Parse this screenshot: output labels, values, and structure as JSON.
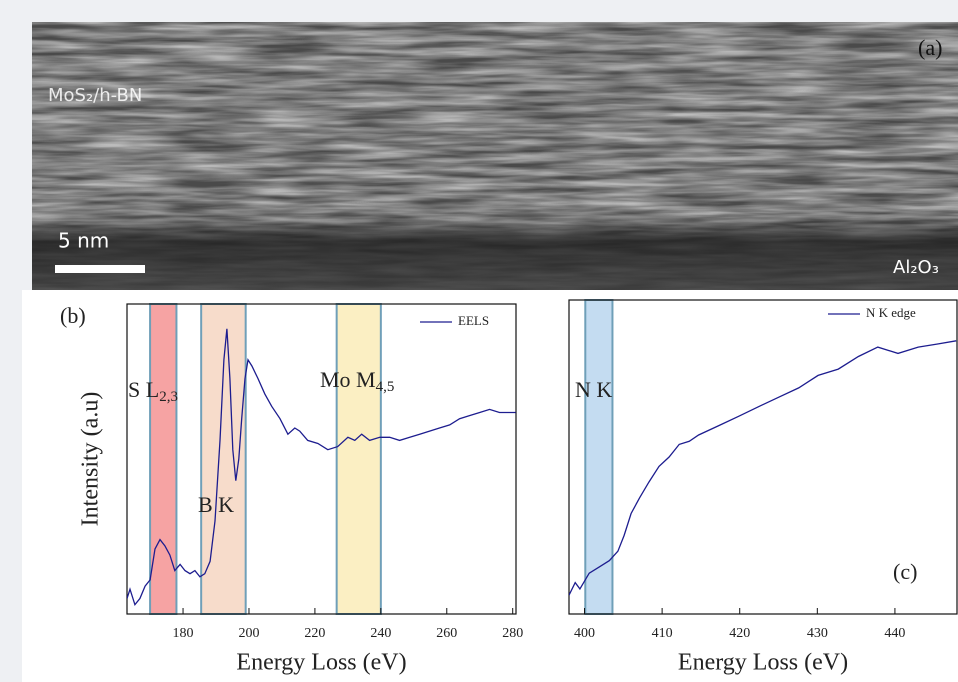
{
  "image": {
    "panel_label": "(a)",
    "material_label": "MoS₂/h-BN",
    "substrate_label": "Al₂O₃",
    "scale_bar": "5 nm"
  },
  "chart_data": [
    {
      "type": "line",
      "panel_label": "(b)",
      "x_label": "Energy Loss (eV)",
      "y_label": "Intensity (a.u)",
      "xlim": [
        163,
        281
      ],
      "xticks": [
        180,
        200,
        220,
        240,
        260,
        280
      ],
      "ylim": [
        0,
        1
      ],
      "bands": [
        {
          "label": "S L",
          "label_sub": "2,3",
          "range": [
            170,
            178
          ],
          "color": "#f6a3a3"
        },
        {
          "label": "B K",
          "range": [
            185.5,
            199
          ],
          "color": "#f7dccb"
        },
        {
          "label": "Mo M",
          "label_sub": "4,5",
          "range": [
            226.6,
            240
          ],
          "color": "#fbefc3"
        }
      ],
      "x": [
        163.0,
        163.9,
        165.4,
        166.9,
        168.5,
        170.0,
        171.5,
        173.0,
        174.5,
        176.0,
        177.5,
        179.1,
        180.6,
        182.1,
        183.6,
        185.1,
        186.6,
        188.2,
        189.7,
        191.2,
        192.4,
        193.3,
        194.2,
        195.1,
        196.0,
        196.9,
        197.8,
        198.8,
        199.7,
        200.9,
        202.7,
        204.8,
        206.9,
        209.4,
        211.8,
        213.9,
        215.4,
        217.8,
        220.9,
        223.9,
        226.9,
        230.0,
        232.1,
        234.2,
        236.6,
        239.7,
        242.7,
        245.7,
        248.8,
        251.8,
        254.8,
        257.8,
        260.9,
        263.9,
        266.9,
        270.0,
        273.0,
        276.0,
        279.1,
        280.9
      ],
      "series": [
        {
          "name": "EELS",
          "color": "#1d1d8f",
          "values": [
            0.05,
            0.08,
            0.03,
            0.05,
            0.09,
            0.11,
            0.21,
            0.24,
            0.22,
            0.19,
            0.14,
            0.16,
            0.14,
            0.13,
            0.14,
            0.12,
            0.13,
            0.17,
            0.3,
            0.56,
            0.82,
            0.92,
            0.76,
            0.53,
            0.43,
            0.5,
            0.63,
            0.76,
            0.82,
            0.8,
            0.76,
            0.71,
            0.67,
            0.63,
            0.58,
            0.6,
            0.59,
            0.56,
            0.55,
            0.53,
            0.54,
            0.57,
            0.56,
            0.58,
            0.56,
            0.57,
            0.57,
            0.56,
            0.57,
            0.58,
            0.59,
            0.6,
            0.61,
            0.63,
            0.64,
            0.65,
            0.66,
            0.65,
            0.65,
            0.65
          ]
        }
      ]
    },
    {
      "type": "line",
      "panel_label": "(c)",
      "x_label": "Energy Loss (eV)",
      "xlim": [
        398,
        448
      ],
      "xticks": [
        400,
        410,
        420,
        430,
        440
      ],
      "ylim": [
        0,
        1
      ],
      "bands": [
        {
          "label": "N K",
          "range": [
            400.1,
            403.6
          ],
          "color": "#c4dcf1"
        }
      ],
      "x": [
        398.0,
        398.8,
        399.4,
        400.6,
        401.9,
        403.2,
        404.3,
        405.1,
        406.0,
        407.1,
        408.3,
        409.6,
        410.9,
        412.2,
        413.5,
        414.7,
        417.3,
        419.9,
        422.4,
        425.0,
        427.6,
        430.1,
        432.7,
        435.3,
        437.8,
        440.4,
        443.0,
        445.5,
        447.9
      ],
      "series": [
        {
          "name": "N K edge",
          "color": "#1d1d8f",
          "values": [
            0.06,
            0.1,
            0.08,
            0.13,
            0.15,
            0.17,
            0.2,
            0.25,
            0.32,
            0.37,
            0.42,
            0.47,
            0.5,
            0.54,
            0.55,
            0.57,
            0.6,
            0.63,
            0.66,
            0.69,
            0.72,
            0.76,
            0.78,
            0.82,
            0.85,
            0.83,
            0.85,
            0.86,
            0.87
          ]
        }
      ]
    }
  ]
}
